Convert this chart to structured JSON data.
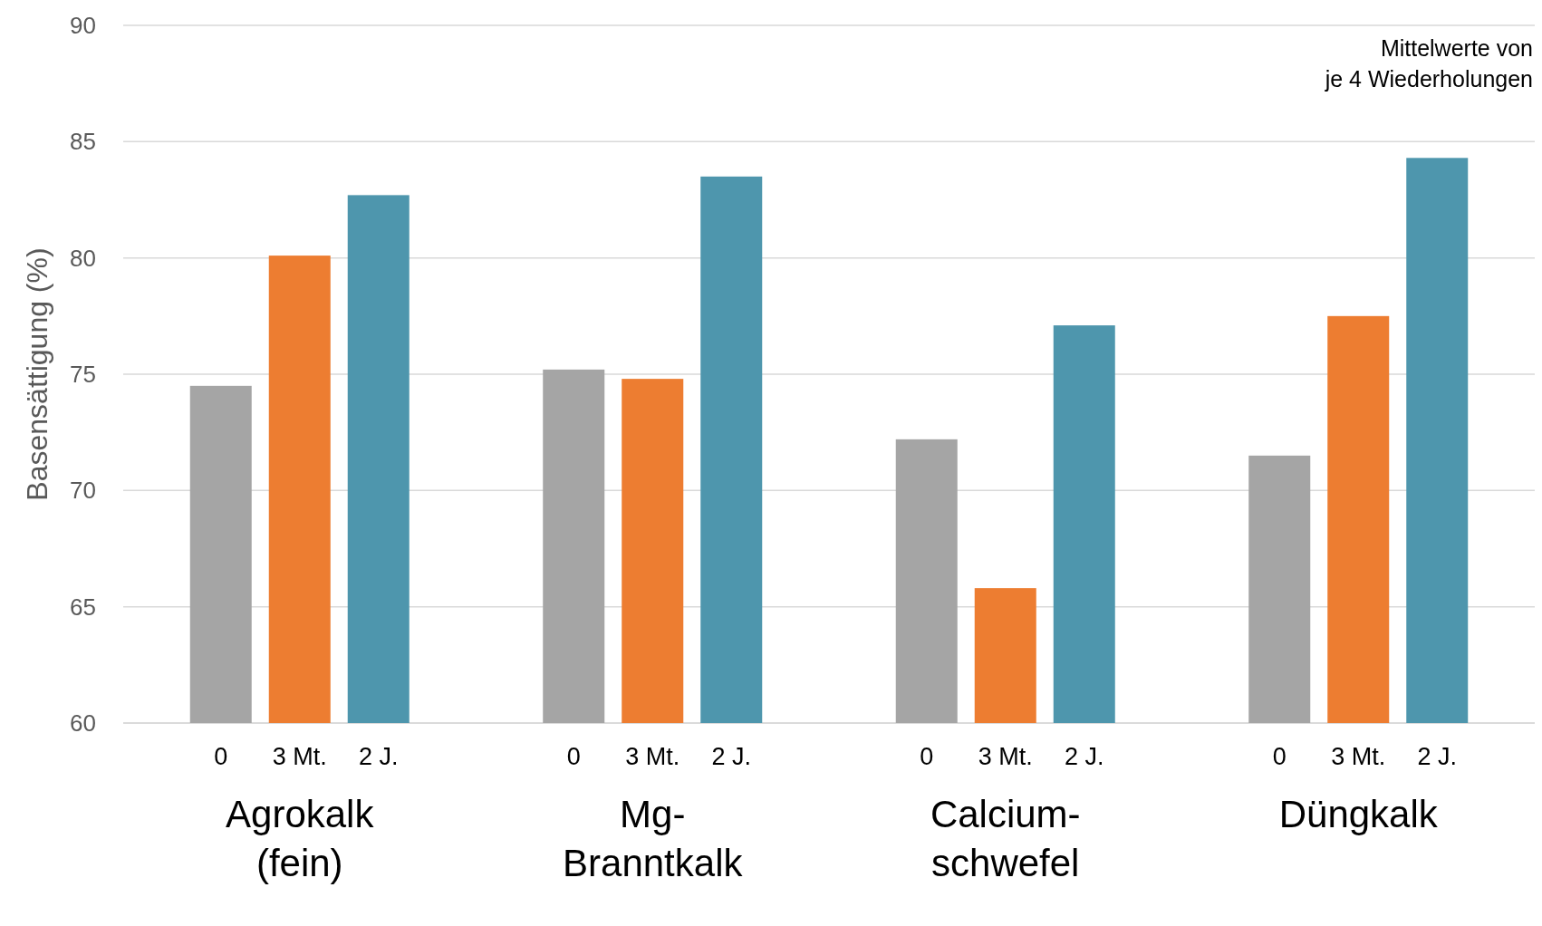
{
  "chart_data": {
    "type": "bar",
    "ylabel": "Basensättigung (%)",
    "categories": [
      "Agrokalk\n(fein)",
      "Mg-\nBranntkalk",
      "Calcium-\nschwefel",
      "Düngkalk"
    ],
    "series": [
      {
        "name": "0",
        "color": "#a5a5a5",
        "values": [
          74.5,
          75.2,
          72.2,
          71.5
        ]
      },
      {
        "name": "3 Mt.",
        "color": "#ed7d31",
        "values": [
          80.1,
          74.8,
          65.8,
          77.5
        ]
      },
      {
        "name": "2 J.",
        "color": "#4e96ad",
        "values": [
          82.7,
          83.5,
          77.1,
          84.3
        ]
      }
    ],
    "ylim": [
      60,
      90
    ],
    "yticks": [
      60,
      65,
      70,
      75,
      80,
      85,
      90
    ],
    "grid": "y",
    "annotations": [
      "Mittelwerte von\nje 4 Wiederholungen"
    ]
  }
}
